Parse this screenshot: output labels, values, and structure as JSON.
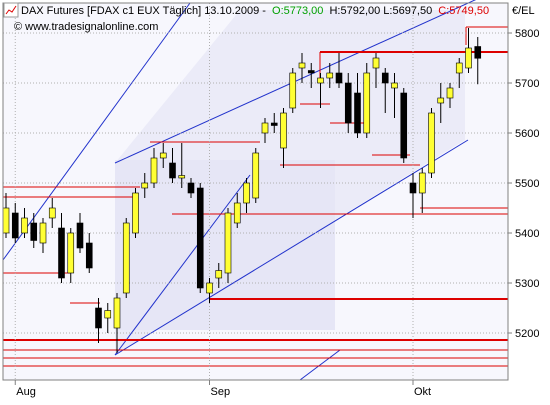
{
  "chart_data": {
    "type": "candlestick",
    "title": "DAX Futures [FDAX c1 EUX  Täglich] 13.10.2009 -",
    "header_open": "O:5773,00",
    "header_high_low": "H:5792,00 L:5697,50",
    "header_close": "C:5749,50",
    "watermark": "© www.tradesignalonline.com",
    "axis_unit": "€/EL",
    "categories": [
      null,
      "Aug",
      null,
      null,
      null,
      null,
      null,
      null,
      null,
      null,
      null,
      null,
      null,
      null,
      null,
      null,
      null,
      null,
      null,
      null,
      null,
      null,
      "Sep",
      null,
      null,
      null,
      null,
      null,
      null,
      null,
      null,
      null,
      null,
      null,
      null,
      null,
      null,
      null,
      null,
      null,
      null,
      null,
      null,
      null,
      "Okt",
      null,
      null,
      null,
      null,
      null,
      null,
      null
    ],
    "open": [
      5400,
      5440,
      5400,
      5420,
      5380,
      5430,
      5410,
      5320,
      5420,
      5380,
      5250,
      5230,
      5210,
      5280,
      5400,
      5490,
      5500,
      5550,
      5540,
      5510,
      5500,
      5490,
      5280,
      5310,
      5320,
      5420,
      5460,
      5470,
      5600,
      5620,
      5570,
      5650,
      5730,
      5725,
      5700,
      5710,
      5720,
      5700,
      5680,
      5600,
      5730,
      5720,
      5690,
      5680,
      5500,
      5480,
      5520,
      5660,
      5670,
      5720,
      5730,
      5773
    ],
    "high": [
      5480,
      5460,
      5450,
      5440,
      5430,
      5470,
      5440,
      5410,
      5440,
      5400,
      5270,
      5260,
      5280,
      5430,
      5490,
      5520,
      5570,
      5580,
      5570,
      5580,
      5510,
      5500,
      5310,
      5340,
      5450,
      5480,
      5510,
      5570,
      5630,
      5640,
      5650,
      5730,
      5760,
      5740,
      5720,
      5740,
      5760,
      5720,
      5720,
      5740,
      5760,
      5730,
      5720,
      5690,
      5520,
      5530,
      5650,
      5700,
      5700,
      5750,
      5810,
      5792
    ],
    "low": [
      5390,
      5380,
      5390,
      5370,
      5360,
      5410,
      5300,
      5300,
      5360,
      5320,
      5180,
      5200,
      5160,
      5270,
      5390,
      5470,
      5490,
      5530,
      5500,
      5490,
      5470,
      5280,
      5260,
      5290,
      5300,
      5410,
      5440,
      5460,
      5580,
      5600,
      5530,
      5640,
      5700,
      5690,
      5650,
      5690,
      5690,
      5600,
      5590,
      5590,
      5690,
      5640,
      5630,
      5540,
      5430,
      5440,
      5510,
      5620,
      5650,
      5690,
      5720,
      5697.5
    ],
    "close": [
      5450,
      5390,
      5430,
      5385,
      5420,
      5450,
      5310,
      5400,
      5370,
      5330,
      5210,
      5245,
      5270,
      5420,
      5480,
      5500,
      5550,
      5560,
      5510,
      5515,
      5480,
      5290,
      5300,
      5325,
      5440,
      5460,
      5500,
      5560,
      5620,
      5615,
      5640,
      5720,
      5740,
      5720,
      5710,
      5720,
      5700,
      5620,
      5600,
      5720,
      5750,
      5700,
      5700,
      5550,
      5480,
      5520,
      5640,
      5670,
      5690,
      5740,
      5770,
      5749.5
    ],
    "up_color": "#ffff33",
    "down_color": "#000000",
    "ylim": [
      5106,
      5860
    ],
    "yticks": [
      5200,
      5300,
      5400,
      5500,
      5600,
      5700,
      5800
    ],
    "grid": true
  }
}
